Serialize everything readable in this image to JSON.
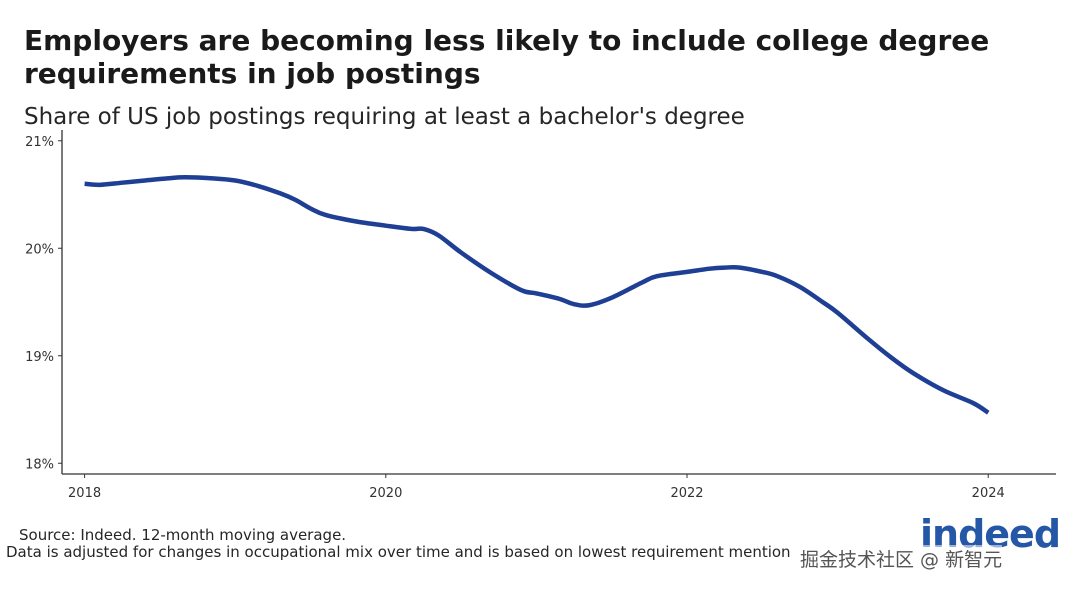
{
  "chart_data": {
    "type": "line",
    "title": "Employers are becoming less likely to include college degree requirements in job postings",
    "subtitle": "Share of US job postings requiring at least a bachelor's degree",
    "xlabel": "",
    "ylabel": "",
    "xlim": [
      2017.85,
      2024.45
    ],
    "ylim": [
      17.9,
      21.1
    ],
    "x_ticks": [
      2018,
      2020,
      2022,
      2024
    ],
    "x_tick_labels": [
      "2018",
      "2020",
      "2022",
      "2024"
    ],
    "y_ticks": [
      18,
      19,
      20,
      21
    ],
    "y_tick_labels": [
      "18%",
      "19%",
      "20%",
      "21%"
    ],
    "grid": false,
    "legend": "none",
    "series_color": "#1f3f95",
    "series": [
      {
        "x": [
          2018.0,
          2018.1,
          2018.25,
          2018.4,
          2018.55,
          2018.67,
          2018.85,
          2019.0,
          2019.15,
          2019.3,
          2019.4,
          2019.5,
          2019.6,
          2019.8,
          2020.0,
          2020.17,
          2020.25,
          2020.35,
          2020.5,
          2020.7,
          2020.9,
          2021.0,
          2021.15,
          2021.25,
          2021.35,
          2021.5,
          2021.7,
          2021.8,
          2022.0,
          2022.15,
          2022.25,
          2022.35,
          2022.5,
          2022.6,
          2022.75,
          2022.9,
          2023.0,
          2023.2,
          2023.35,
          2023.5,
          2023.7,
          2023.9,
          2024.0
        ],
        "values": [
          20.6,
          20.59,
          20.61,
          20.63,
          20.65,
          20.66,
          20.65,
          20.63,
          20.58,
          20.51,
          20.45,
          20.37,
          20.31,
          20.25,
          20.21,
          20.18,
          20.18,
          20.12,
          19.96,
          19.77,
          19.61,
          19.58,
          19.53,
          19.48,
          19.47,
          19.54,
          19.68,
          19.74,
          19.78,
          19.81,
          19.82,
          19.82,
          19.78,
          19.74,
          19.64,
          19.5,
          19.4,
          19.16,
          18.99,
          18.84,
          18.68,
          18.56,
          18.47
        ]
      }
    ]
  },
  "notes": {
    "source": "Source: Indeed. 12-month moving average.",
    "methodology": "Data is adjusted for changes in occupational mix over time and is based on lowest requirement mention"
  },
  "brand": {
    "logo_text": "indeed",
    "logo_color": "#2557a7"
  },
  "watermark": {
    "text": "掘金技术社区 @ 新智元"
  }
}
